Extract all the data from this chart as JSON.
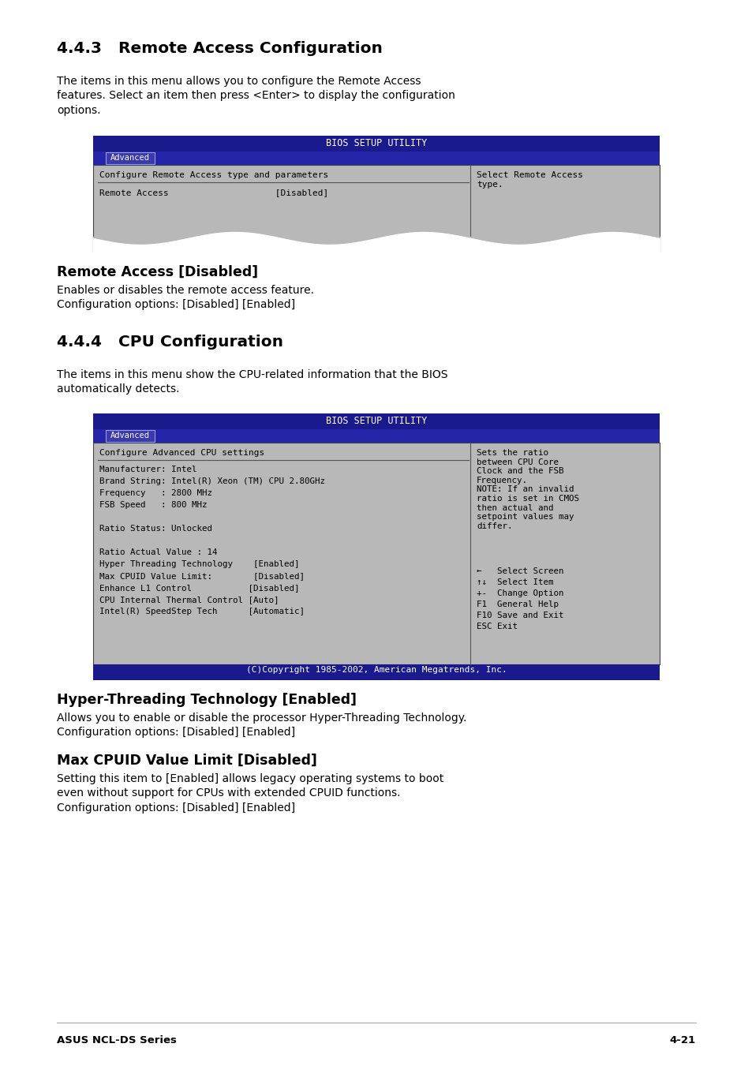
{
  "bg_color": "#ffffff",
  "section1_title": "4.4.3   Remote Access Configuration",
  "section1_body": "The items in this menu allows you to configure the Remote Access\nfeatures. Select an item then press <Enter> to display the configuration\noptions.",
  "bios1_title": "BIOS SETUP UTILITY",
  "bios1_tab": "Advanced",
  "bios1_left_header": "Configure Remote Access type and parameters",
  "bios1_left_item": "Remote Access                    [Disabled]",
  "bios1_right_text": "Select Remote Access\ntype.",
  "sub1_title": "Remote Access [Disabled]",
  "sub1_body": "Enables or disables the remote access feature.\nConfiguration options: [Disabled] [Enabled]",
  "section2_title": "4.4.4   CPU Configuration",
  "section2_body": "The items in this menu show the CPU-related information that the BIOS\nautomatically detects.",
  "bios2_title": "BIOS SETUP UTILITY",
  "bios2_tab": "Advanced",
  "bios2_left_header": "Configure Advanced CPU settings",
  "bios2_left_lines": [
    "Manufacturer: Intel",
    "Brand String: Intel(R) Xeon (TM) CPU 2.80GHz",
    "Frequency   : 2800 MHz",
    "FSB Speed   : 800 MHz",
    "",
    "Ratio Status: Unlocked",
    "",
    "Ratio Actual Value : 14",
    "Hyper Threading Technology    [Enabled]",
    "Max CPUID Value Limit:        [Disabled]",
    "Enhance L1 Control           [Disabled]",
    "CPU Internal Thermal Control [Auto]",
    "Intel(R) SpeedStep Tech      [Automatic]"
  ],
  "bios2_right_top": "Sets the ratio\nbetween CPU Core\nClock and the FSB\nFrequency.\nNOTE: If an invalid\nratio is set in CMOS\nthen actual and\nsetpoint values may\ndiffer.",
  "bios2_right_bottom": "←   Select Screen\n↑↓  Select Item\n+-  Change Option\nF1  General Help\nF10 Save and Exit\nESC Exit",
  "bios2_footer": "(C)Copyright 1985-2002, American Megatrends, Inc.",
  "sub2_title": "Hyper-Threading Technology [Enabled]",
  "sub2_body": "Allows you to enable or disable the processor Hyper-Threading Technology.\nConfiguration options: [Disabled] [Enabled]",
  "sub3_title": "Max CPUID Value Limit [Disabled]",
  "sub3_body": "Setting this item to [Enabled] allows legacy operating systems to boot\neven without support for CPUs with extended CPUID functions.\nConfiguration options: [Disabled] [Enabled]",
  "footer_left": "ASUS NCL-DS Series",
  "footer_right": "4-21",
  "dark_blue": "#1a1a8c",
  "medium_blue": "#2525aa",
  "bios_bg": "#b8b8b8",
  "nav_bg": "#c8c8c8"
}
